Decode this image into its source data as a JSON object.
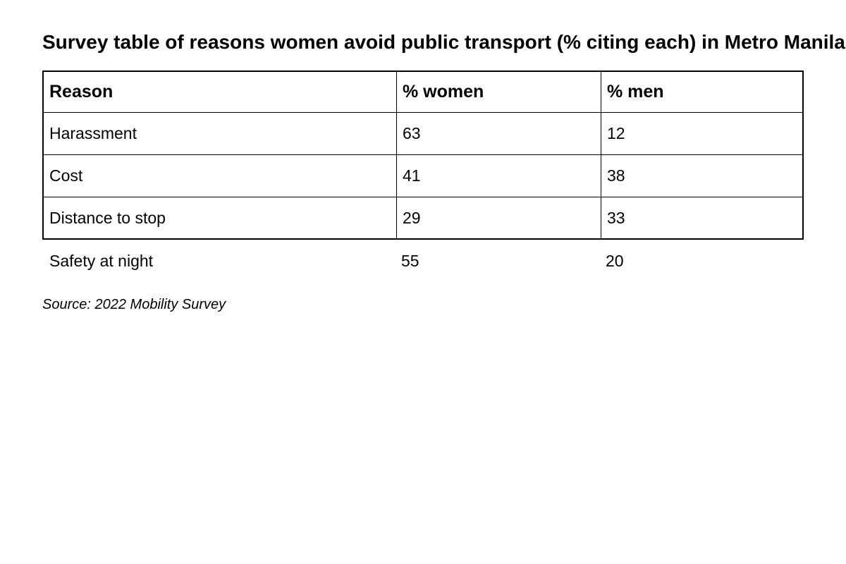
{
  "chart_data": {
    "type": "table",
    "title": "Survey table of reasons women avoid public transport (% citing each) in Metro Manila",
    "columns": [
      "Reason",
      "% women",
      "% men"
    ],
    "rows": [
      [
        "Harassment",
        "63",
        "12"
      ],
      [
        "Cost",
        "41",
        "38"
      ],
      [
        "Distance to stop",
        "29",
        "33"
      ],
      [
        "Safety at night",
        "55",
        "20"
      ]
    ],
    "source": "Source: 2022 Mobility Survey"
  }
}
